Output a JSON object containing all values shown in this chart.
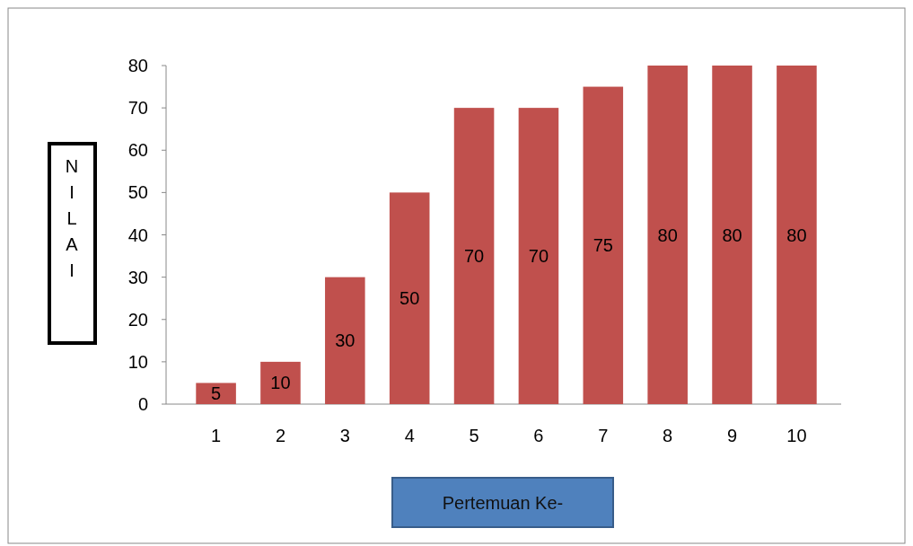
{
  "chart_data": {
    "type": "bar",
    "xlabel": "Pertemuan Ke-",
    "ylabel": "NILAI",
    "categories": [
      "1",
      "2",
      "3",
      "4",
      "5",
      "6",
      "7",
      "8",
      "9",
      "10"
    ],
    "values": [
      5,
      10,
      30,
      50,
      70,
      70,
      75,
      80,
      80,
      80
    ],
    "color": "#c0504d",
    "ylim": [
      0,
      80
    ],
    "yticks": [
      0,
      10,
      20,
      30,
      40,
      50,
      60,
      70,
      80
    ],
    "data_labels": true,
    "grid": false
  }
}
